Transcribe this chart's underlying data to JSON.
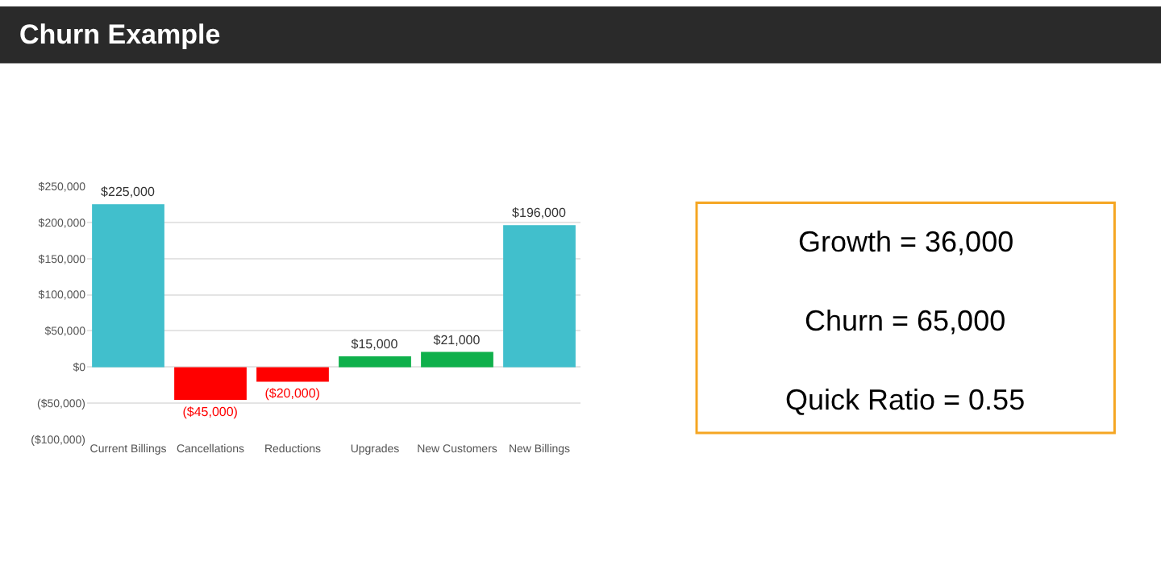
{
  "chart_data": [
    {
      "type": "bar",
      "title": "Churn Example",
      "categories": [
        "Current Billings",
        "Cancellations",
        "Reductions",
        "Upgrades",
        "New Customers",
        "New Billings"
      ],
      "values": [
        225000,
        -45000,
        -20000,
        15000,
        21000,
        196000
      ],
      "colors": [
        "#41bfcc",
        "#ff0000",
        "#ff0000",
        "#0fb04b",
        "#0fb04b",
        "#41bfcc"
      ],
      "value_labels": [
        "$225,000",
        "($45,000)",
        "($20,000)",
        "$15,000",
        "$21,000",
        "$196,000"
      ],
      "ylim": [
        -100000,
        250000
      ],
      "yticks": [
        {
          "value": -100000,
          "label": "($100,000)"
        },
        {
          "value": -50000,
          "label": "($50,000)"
        },
        {
          "value": 0,
          "label": "$0"
        },
        {
          "value": 50000,
          "label": "$50,000"
        },
        {
          "value": 100000,
          "label": "$100,000"
        },
        {
          "value": 150000,
          "label": "$150,000"
        },
        {
          "value": 200000,
          "label": "$200,000"
        },
        {
          "value": 250000,
          "label": "$250,000"
        }
      ],
      "grid": "y"
    },
    {
      "type": "other",
      "annotations": [
        "Growth = 36,000",
        "Churn = 65,000",
        "Quick Ratio = 0.55"
      ]
    }
  ]
}
